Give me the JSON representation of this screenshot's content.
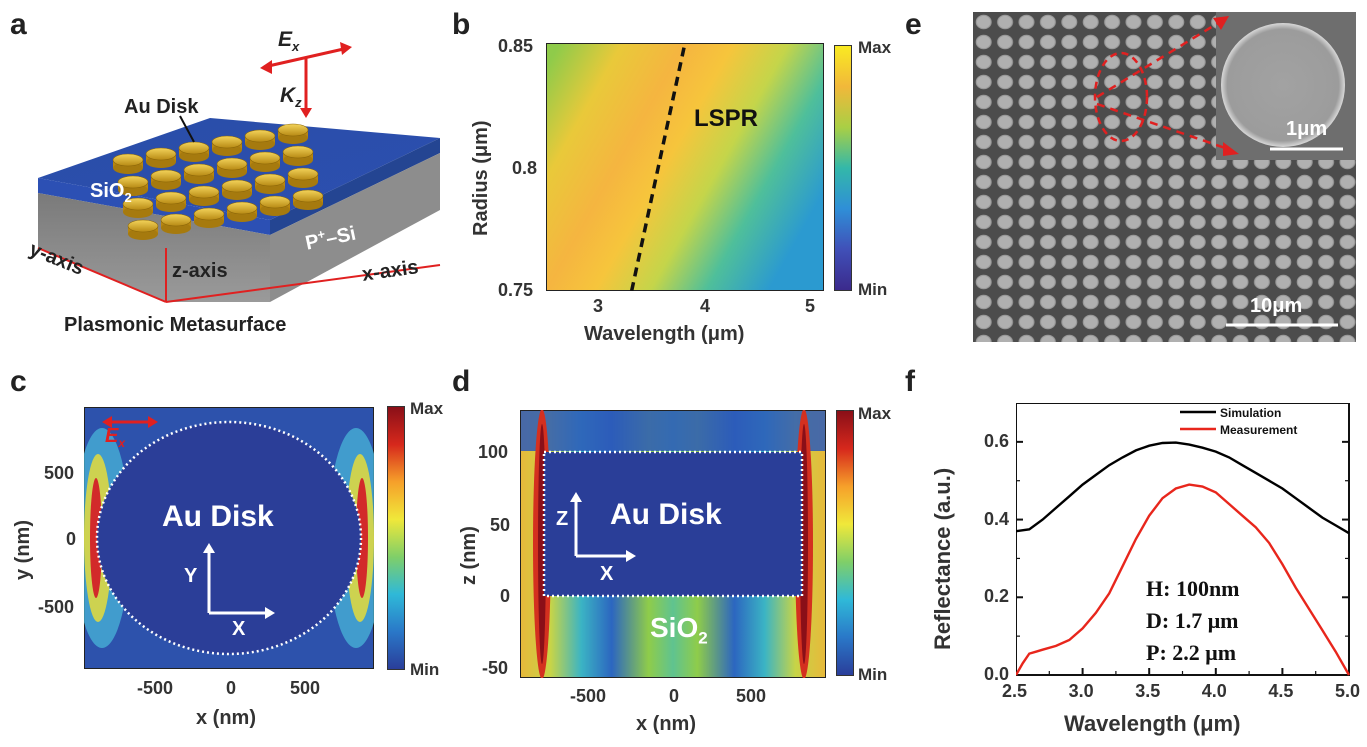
{
  "panel_labels": {
    "a": "a",
    "b": "b",
    "c": "c",
    "d": "d",
    "e": "e",
    "f": "f"
  },
  "panel_a": {
    "field_E": "E",
    "field_E_sub": "x",
    "field_K": "K",
    "field_K_sub": "z",
    "au_disk": "Au Disk",
    "sio2": "SiO",
    "sio2_sub": "2",
    "psi": "P",
    "psi_sup": "+",
    "psi_rest": "–Si",
    "y_axis": "y-axis",
    "z_axis": "z-axis",
    "x_axis": "x-axis",
    "caption": "Plasmonic Metasurface"
  },
  "panel_b": {
    "ylabel": "Radius (μm)",
    "xlabel": "Wavelength (μm)",
    "yticks": [
      "0.85",
      "0.8",
      "0.75"
    ],
    "xticks": [
      "3",
      "4",
      "5"
    ],
    "annotation": "LSPR",
    "cb_max": "Max",
    "cb_min": "Min"
  },
  "panel_c": {
    "ylabel": "y (nm)",
    "xlabel": "x (nm)",
    "yticks": [
      "500",
      "0",
      "-500"
    ],
    "xticks": [
      "-500",
      "0",
      "500"
    ],
    "label": "Au Disk",
    "field": "E",
    "field_sub": "x",
    "axisY": "Y",
    "axisX": "X",
    "cb_max": "Max",
    "cb_min": "Min"
  },
  "panel_d": {
    "ylabel": "z (nm)",
    "xlabel": "x (nm)",
    "yticks": [
      "100",
      "50",
      "0",
      "-50"
    ],
    "xticks": [
      "-500",
      "0",
      "500"
    ],
    "label": "Au Disk",
    "sio2": "SiO",
    "sio2_sub": "2",
    "axisZ": "Z",
    "axisX": "X",
    "cb_max": "Max",
    "cb_min": "Min"
  },
  "panel_e": {
    "scale_inset": "1μm",
    "scale_main": "10μm"
  },
  "panel_f": {
    "ylabel": "Reflectance (a.u.)",
    "xlabel": "Wavelength (μm)",
    "h": "H: 100nm",
    "d": "D: 1.7 μm",
    "p": "P: 2.2 μm"
  },
  "chart_data": [
    {
      "type": "line",
      "xlabel": "Wavelength (μm)",
      "ylabel": "Reflectance (a.u.)",
      "xlim": [
        2.5,
        5.0
      ],
      "ylim": [
        0.0,
        0.7
      ],
      "xticks": [
        2.5,
        3.0,
        3.5,
        4.0,
        4.5,
        5.0
      ],
      "yticks": [
        0.0,
        0.2,
        0.4,
        0.6
      ],
      "legend": "top-right",
      "colors": {
        "Simulation": "#000000",
        "Measurement": "#e8261c"
      },
      "series": [
        {
          "name": "Simulation",
          "x": [
            2.5,
            2.6,
            2.7,
            2.8,
            2.9,
            3.0,
            3.1,
            3.2,
            3.3,
            3.4,
            3.5,
            3.6,
            3.7,
            3.8,
            3.9,
            4.0,
            4.1,
            4.2,
            4.3,
            4.4,
            4.5,
            4.6,
            4.7,
            4.8,
            4.9,
            5.0
          ],
          "y": [
            0.37,
            0.375,
            0.4,
            0.43,
            0.46,
            0.49,
            0.515,
            0.54,
            0.56,
            0.578,
            0.59,
            0.597,
            0.598,
            0.593,
            0.585,
            0.575,
            0.56,
            0.54,
            0.52,
            0.5,
            0.48,
            0.455,
            0.43,
            0.405,
            0.385,
            0.365
          ]
        },
        {
          "name": "Measurement",
          "x": [
            2.5,
            2.55,
            2.6,
            2.65,
            2.7,
            2.8,
            2.9,
            3.0,
            3.1,
            3.2,
            3.3,
            3.4,
            3.5,
            3.6,
            3.7,
            3.8,
            3.9,
            4.0,
            4.1,
            4.2,
            4.3,
            4.4,
            4.5,
            4.6,
            4.7,
            4.8,
            4.9,
            5.0
          ],
          "y": [
            0.0,
            0.03,
            0.055,
            0.06,
            0.065,
            0.075,
            0.09,
            0.12,
            0.16,
            0.21,
            0.28,
            0.35,
            0.41,
            0.455,
            0.48,
            0.49,
            0.485,
            0.47,
            0.44,
            0.41,
            0.38,
            0.34,
            0.285,
            0.225,
            0.17,
            0.115,
            0.06,
            0.0
          ]
        }
      ]
    },
    {
      "type": "heatmap",
      "xlabel": "Wavelength (μm)",
      "ylabel": "Radius (μm)",
      "xlim": [
        2.5,
        5.0
      ],
      "ylim": [
        0.75,
        0.85
      ],
      "xticks": [
        3,
        4,
        5
      ],
      "yticks": [
        0.75,
        0.8,
        0.85
      ],
      "colorbar": [
        "Min",
        "Max"
      ],
      "lspr_line": {
        "x": [
          3.27,
          3.75
        ],
        "y": [
          0.75,
          0.85
        ]
      }
    }
  ]
}
